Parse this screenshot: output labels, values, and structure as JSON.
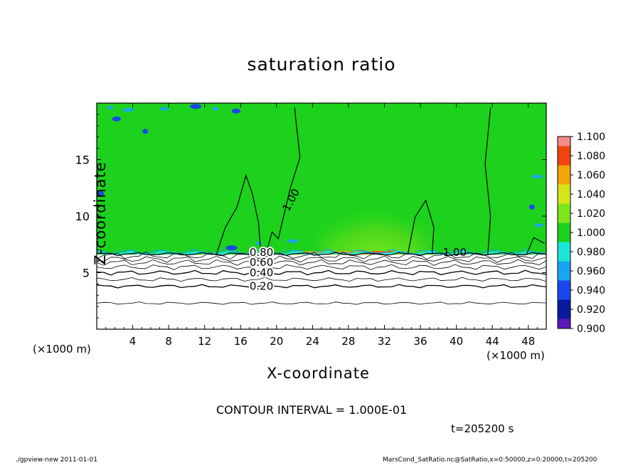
{
  "chart_data": {
    "type": "heatmap",
    "title": "saturation ratio",
    "xlabel": "X-coordinate",
    "ylabel": "Z-coordinate",
    "x_unit_label": "(×1000 m)",
    "xlim": [
      0,
      50
    ],
    "ylim": [
      0,
      20
    ],
    "x_ticks": [
      4,
      8,
      12,
      16,
      20,
      24,
      28,
      32,
      36,
      40,
      44,
      48
    ],
    "y_ticks": [
      5,
      10,
      15
    ],
    "colorbar": {
      "levels": [
        0.9,
        0.92,
        0.94,
        0.96,
        0.98,
        1.0,
        1.02,
        1.04,
        1.06,
        1.08,
        1.1
      ],
      "tick_labels": [
        "0.900",
        "0.920",
        "0.940",
        "0.960",
        "0.980",
        "1.000",
        "1.020",
        "1.040",
        "1.060",
        "1.080",
        "1.100"
      ],
      "colors": [
        "#5a1ab8",
        "#0a1a9c",
        "#1b47ee",
        "#1aa3f0",
        "#1ce6d6",
        "#1cd21c",
        "#7ce61c",
        "#d7e61a",
        "#f5a30a",
        "#f0460e",
        "#f58a8a"
      ]
    },
    "contour_labels": [
      {
        "value": "1.00",
        "x": 21.0,
        "z": 10.5
      },
      {
        "value": "1.00",
        "x": 38.5,
        "z": 6.8
      },
      {
        "value": "0.80",
        "x": 17.0,
        "z": 6.8
      },
      {
        "value": "0.60",
        "x": 17.0,
        "z": 5.9
      },
      {
        "value": "0.40",
        "x": 17.0,
        "z": 5.0
      },
      {
        "value": "0.20",
        "x": 17.0,
        "z": 3.8
      }
    ],
    "contour_lines_z": [
      2.3,
      3.8,
      4.4,
      5.0,
      5.5,
      5.9,
      6.2,
      6.5
    ],
    "saturation_top_z": 6.6,
    "high_core": {
      "x": [
        24,
        38
      ],
      "z": [
        7,
        13
      ],
      "value": 1.02
    }
  },
  "annotations": {
    "contour_interval": "CONTOUR INTERVAL = 1.000E-01",
    "time": "t=205200 s"
  },
  "footer": {
    "left": "./gpview-new   2011-01-01",
    "right": "MarsCond_SatRatio.nc@SatRatio,x=0:50000,z=0:20000,t=205200"
  }
}
